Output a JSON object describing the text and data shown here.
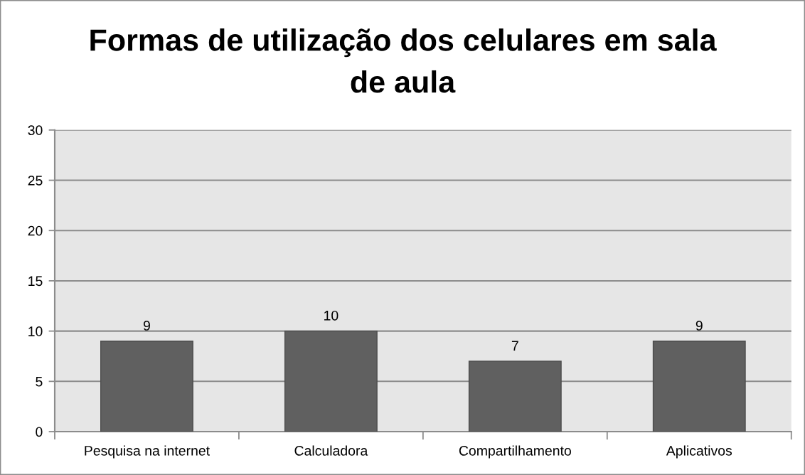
{
  "chart_data": {
    "type": "bar",
    "title": "Formas de utilização dos celulares em sala\nde aula",
    "categories": [
      "Pesquisa na internet",
      "Calculadora",
      "Compartilhamento",
      "Aplicativos"
    ],
    "values": [
      9,
      10,
      7,
      9
    ],
    "color": "#606060",
    "ylim": [
      0,
      30
    ],
    "yticks": [
      0,
      5,
      10,
      15,
      20,
      25,
      30
    ],
    "grid": "y",
    "data_labels": true,
    "legend": false
  }
}
